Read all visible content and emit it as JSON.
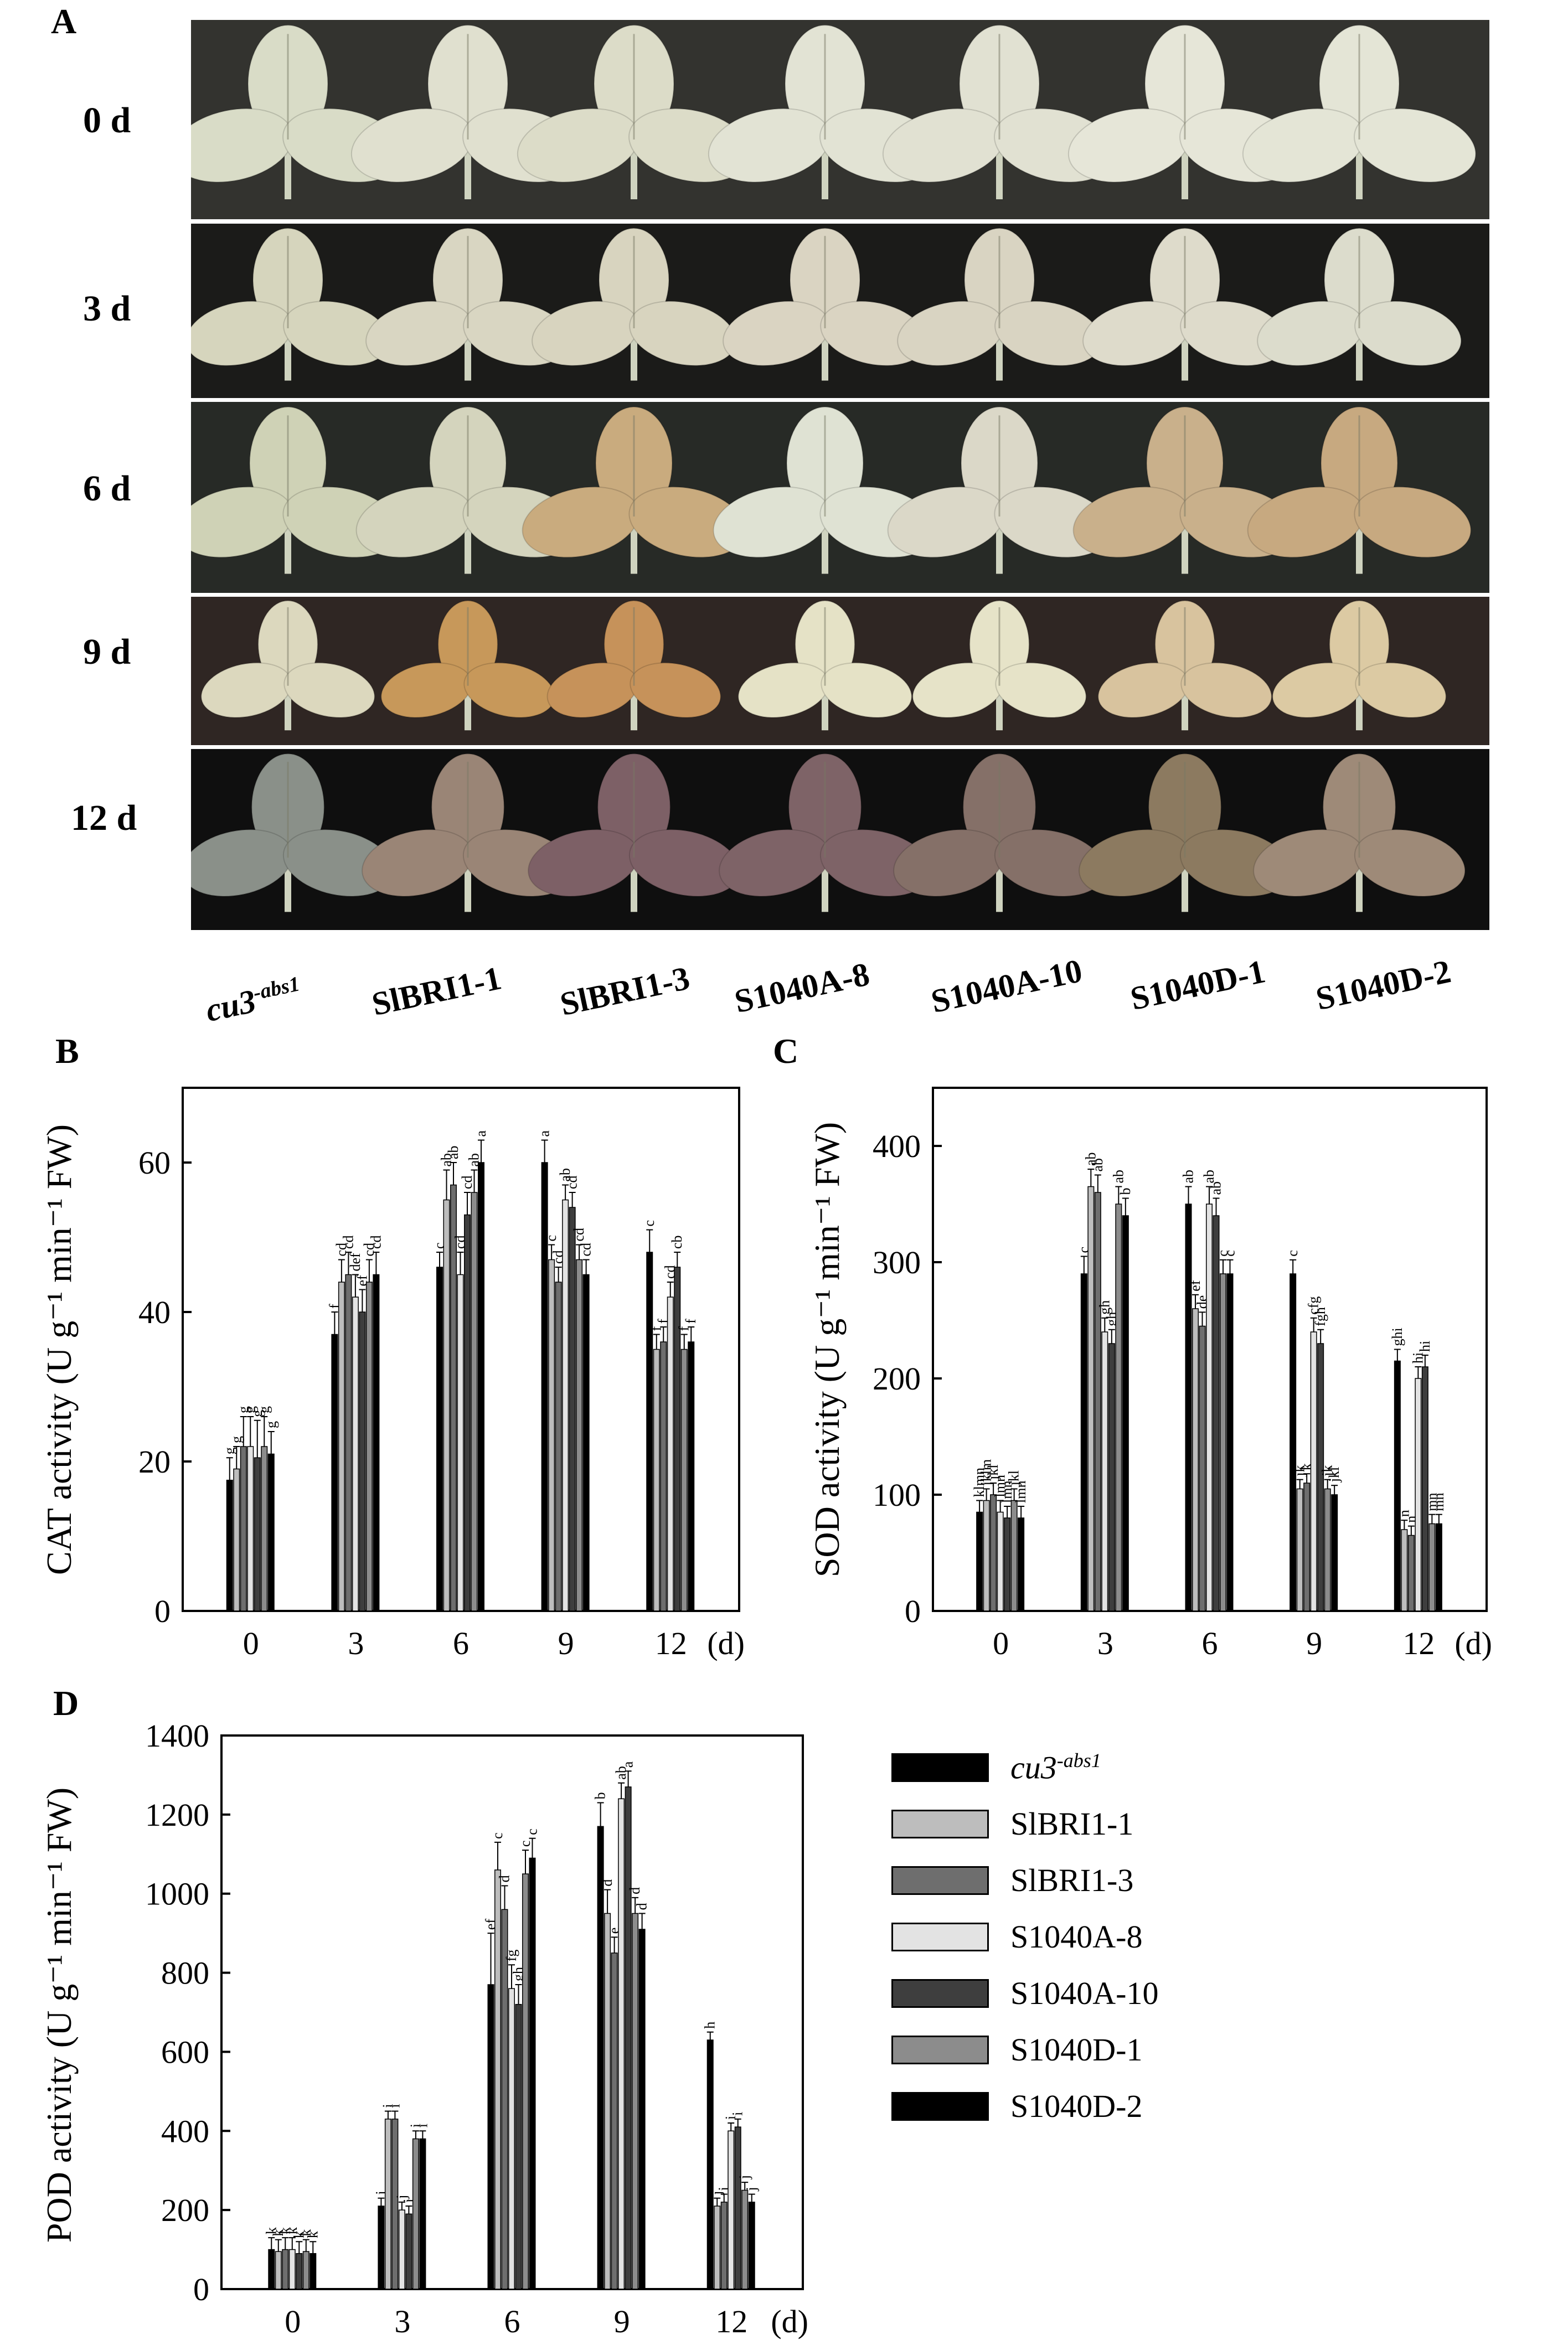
{
  "panel_labels": {
    "A": "A",
    "B": "B",
    "C": "C",
    "D": "D"
  },
  "photo_panel": {
    "days": [
      "0 d",
      "3 d",
      "6 d",
      "9 d",
      "12 d"
    ],
    "genotypes": [
      {
        "name": "cu3",
        "sup": "-abs1",
        "italic": true
      },
      {
        "name": "SlBRI1-1",
        "sup": "",
        "italic": false
      },
      {
        "name": "SlBRI1-3",
        "sup": "",
        "italic": false
      },
      {
        "name": "S1040A-8",
        "sup": "",
        "italic": false
      },
      {
        "name": "S1040A-10",
        "sup": "",
        "italic": false
      },
      {
        "name": "S1040D-1",
        "sup": "",
        "italic": false
      },
      {
        "name": "S1040D-2",
        "sup": "",
        "italic": false
      }
    ],
    "row_backgrounds": [
      "#33332f",
      "#1b1b19",
      "#272a26",
      "#2f2623",
      "#0f0f0f"
    ],
    "leaf_colors": [
      [
        "#d9dcc7",
        "#e0e0cf",
        "#dcdcc8",
        "#e2e3d4",
        "#e1e1d2",
        "#e6e6d8",
        "#e4e5d6"
      ],
      [
        "#d6d5bd",
        "#d9d6c2",
        "#d8d4bf",
        "#dad4c2",
        "#d9d4c2",
        "#dedbcb",
        "#dcdccc"
      ],
      [
        "#cfd2b6",
        "#d4d4bd",
        "#c9ab7e",
        "#dfe2d3",
        "#dbd8c8",
        "#c9b08b",
        "#c7a980"
      ],
      [
        "#dcd8be",
        "#c7985a",
        "#c6925a",
        "#e5e2c6",
        "#e6e3c8",
        "#d8c39e",
        "#dccaa3"
      ],
      [
        "#8a9089",
        "#9a8576",
        "#7d6066",
        "#7e6367",
        "#857068",
        "#8c7a60",
        "#9e8a78"
      ]
    ]
  },
  "legend": {
    "items": [
      {
        "label": "cu3",
        "sup": "-abs1",
        "color": "#000000",
        "italic": true
      },
      {
        "label": "SlBRI1-1",
        "sup": "",
        "color": "#bdbdbd",
        "italic": false
      },
      {
        "label": "SlBRI1-3",
        "sup": "",
        "color": "#6e6e6e",
        "italic": false
      },
      {
        "label": "S1040A-8",
        "sup": "",
        "color": "#e3e3e3",
        "italic": false
      },
      {
        "label": "S1040A-10",
        "sup": "",
        "color": "#3e3e3e",
        "italic": false
      },
      {
        "label": "S1040D-1",
        "sup": "",
        "color": "#8c8c8c",
        "italic": false
      },
      {
        "label": "S1040D-2",
        "sup": "",
        "color": "#000000",
        "italic": false
      }
    ]
  },
  "chart_data": [
    {
      "id": "B",
      "type": "bar",
      "ylabel": "CAT activity (U g⁻¹ min⁻¹ FW)",
      "xlabel": "(d)",
      "categories": [
        "0",
        "3",
        "6",
        "9",
        "12"
      ],
      "ylim": [
        0,
        70
      ],
      "yticks": [
        0,
        20,
        40,
        60
      ],
      "series_names": [
        "cu3-abs1",
        "SlBRI1-1",
        "SlBRI1-3",
        "S1040A-8",
        "S1040A-10",
        "S1040D-1",
        "S1040D-2"
      ],
      "values": [
        [
          17.5,
          19,
          22,
          22,
          20.5,
          22,
          21
        ],
        [
          37,
          44,
          45,
          42,
          40,
          44,
          45
        ],
        [
          46,
          55,
          57,
          45,
          53,
          56,
          60
        ],
        [
          60,
          47,
          44,
          55,
          54,
          47,
          45
        ],
        [
          48,
          35,
          36,
          42,
          46,
          35,
          36
        ]
      ],
      "errors": [
        [
          3,
          3,
          4,
          4,
          5,
          4,
          3
        ],
        [
          3,
          3,
          3,
          3,
          3,
          3,
          3
        ],
        [
          2,
          4,
          3,
          3,
          3,
          3,
          3
        ],
        [
          3,
          2,
          2,
          2,
          2,
          2,
          2
        ],
        [
          3,
          2,
          2,
          2,
          2,
          2,
          2
        ]
      ],
      "letters": [
        [
          "g",
          "g",
          "g",
          "g",
          "g",
          "g",
          "g"
        ],
        [
          "f",
          "cd",
          "cd",
          "def",
          "ef",
          "cd",
          "cd"
        ],
        [
          "c",
          "ab",
          "ab",
          "cd",
          "cd",
          "ab",
          "a"
        ],
        [
          "a",
          "c",
          "cd",
          "ab",
          "cd",
          "cd",
          "cd"
        ],
        [
          "c",
          "f",
          "f",
          "cd",
          "cb",
          "f",
          "f"
        ]
      ]
    },
    {
      "id": "C",
      "type": "bar",
      "ylabel": "SOD activity (U g⁻¹ min⁻¹ FW)",
      "xlabel": "(d)",
      "categories": [
        "0",
        "3",
        "6",
        "9",
        "12"
      ],
      "ylim": [
        0,
        450
      ],
      "yticks": [
        0,
        100,
        200,
        300,
        400
      ],
      "series_names": [
        "cu3-abs1",
        "SlBRI1-1",
        "SlBRI1-3",
        "S1040A-8",
        "S1040A-10",
        "S1040D-1",
        "S1040D-2"
      ],
      "values": [
        [
          85,
          95,
          100,
          85,
          80,
          95,
          80
        ],
        [
          290,
          365,
          360,
          240,
          230,
          350,
          340
        ],
        [
          350,
          260,
          245,
          350,
          340,
          290,
          290
        ],
        [
          290,
          105,
          110,
          240,
          230,
          105,
          100
        ],
        [
          215,
          70,
          65,
          200,
          210,
          75,
          75
        ]
      ],
      "errors": [
        [
          10,
          10,
          10,
          10,
          10,
          10,
          10
        ],
        [
          15,
          15,
          15,
          12,
          12,
          15,
          15
        ],
        [
          15,
          12,
          12,
          15,
          15,
          12,
          12
        ],
        [
          12,
          8,
          8,
          12,
          12,
          8,
          8
        ],
        [
          10,
          8,
          8,
          10,
          10,
          8,
          8
        ]
      ],
      "letters": [
        [
          "klmn",
          "jklm",
          "jkl",
          "lmn",
          "lmn",
          "jkl",
          "lmn"
        ],
        [
          "c",
          "ab",
          "ab",
          "gh",
          "gh",
          "ab",
          "b"
        ],
        [
          "ab",
          "ef",
          "de",
          "ab",
          "ab",
          "c",
          "c"
        ],
        [
          "c",
          "jk",
          "k",
          "cfg",
          "fgh",
          "jk",
          "jkl"
        ],
        [
          "ghi",
          "n",
          "n",
          "hi",
          "hi",
          "mn",
          "mn"
        ]
      ]
    },
    {
      "id": "D",
      "type": "bar",
      "ylabel": "POD activity (U g⁻¹ min⁻¹ FW)",
      "xlabel": "(d)",
      "categories": [
        "0",
        "3",
        "6",
        "9",
        "12"
      ],
      "ylim": [
        0,
        1400
      ],
      "yticks": [
        0,
        200,
        400,
        600,
        800,
        1000,
        1200,
        1400
      ],
      "series_names": [
        "cu3-abs1",
        "SlBRI1-1",
        "SlBRI1-3",
        "S1040A-8",
        "S1040A-10",
        "S1040D-1",
        "S1040D-2"
      ],
      "values": [
        [
          100,
          95,
          100,
          100,
          90,
          95,
          90
        ],
        [
          210,
          430,
          430,
          200,
          190,
          380,
          380
        ],
        [
          770,
          1060,
          960,
          760,
          720,
          1050,
          1090
        ],
        [
          1170,
          950,
          850,
          1240,
          1270,
          950,
          910
        ],
        [
          630,
          210,
          220,
          400,
          410,
          250,
          220
        ]
      ],
      "errors": [
        [
          30,
          30,
          30,
          30,
          30,
          30,
          30
        ],
        [
          20,
          20,
          20,
          20,
          20,
          20,
          20
        ],
        [
          130,
          70,
          60,
          60,
          50,
          60,
          50
        ],
        [
          60,
          60,
          40,
          40,
          40,
          40,
          40
        ],
        [
          20,
          20,
          20,
          20,
          20,
          20,
          20
        ]
      ],
      "letters": [
        [
          "k",
          "k",
          "k",
          "k",
          "k",
          "k",
          "k"
        ],
        [
          "j",
          "i",
          "i",
          "j",
          "j",
          "i",
          "i"
        ],
        [
          "ef",
          "c",
          "d",
          "fg",
          "gh",
          "c",
          "c"
        ],
        [
          "b",
          "d",
          "e",
          "ab",
          "a",
          "d",
          "d"
        ],
        [
          "h",
          "j",
          "j",
          "i",
          "i",
          "j",
          "j"
        ]
      ]
    }
  ]
}
